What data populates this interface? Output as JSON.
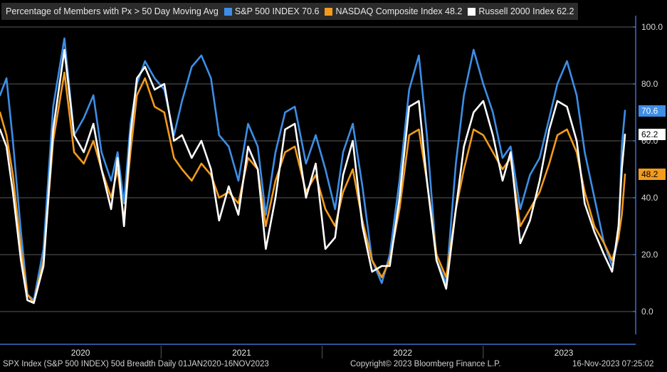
{
  "legend": {
    "title": "Percentage of Members with Px > 50 Day Moving Avg",
    "items": [
      {
        "label": "S&P 500 INDEX 70.6",
        "color": "#3d8ee6"
      },
      {
        "label": "NASDAQ Composite Index 48.2",
        "color": "#f29b1d"
      },
      {
        "label": "Russell 2000 Index 62.2",
        "color": "#ffffff"
      }
    ]
  },
  "badges": [
    {
      "label": "70.6",
      "value": 70.6,
      "bg": "#3d8ee6",
      "fg": "#ffffff"
    },
    {
      "label": "62.2",
      "value": 62.2,
      "bg": "#ffffff",
      "fg": "#000000"
    },
    {
      "label": "48.2",
      "value": 48.2,
      "bg": "#f29b1d",
      "fg": "#000000"
    }
  ],
  "footer": {
    "left": "SPX Index (S&P 500 INDEX) 50d Breadth  Daily 01JAN2020-16NOV2023",
    "center": "Copyright© 2023 Bloomberg Finance L.P.",
    "right": "16-Nov-2023 07:25:02"
  },
  "chart_data": {
    "type": "line",
    "title": "Percentage of Members with Px > 50 Day Moving Avg",
    "xlabel": "",
    "ylabel": "",
    "ylim": [
      -8,
      104
    ],
    "xlim": [
      2020.0,
      2023.88
    ],
    "yticks": [
      0,
      20,
      40,
      60,
      80,
      100
    ],
    "ytick_labels": [
      "0.0",
      "20.0",
      "40.0",
      "60.0",
      "80.0",
      "100.0"
    ],
    "xticks": [
      {
        "label": "2020",
        "at": 2020.5
      },
      {
        "label": "2021",
        "at": 2021.5
      },
      {
        "label": "2022",
        "at": 2022.5
      },
      {
        "label": "2023",
        "at": 2023.5
      }
    ],
    "year_separators": [
      2021.0,
      2022.0,
      2023.0
    ],
    "grid": true,
    "legend_position": "top-left",
    "series": [
      {
        "name": "S&P 500 INDEX",
        "color": "#3d8ee6",
        "last": 70.6,
        "points": [
          [
            2020.0,
            76
          ],
          [
            2020.04,
            82
          ],
          [
            2020.08,
            60
          ],
          [
            2020.13,
            28
          ],
          [
            2020.17,
            6
          ],
          [
            2020.21,
            4
          ],
          [
            2020.27,
            22
          ],
          [
            2020.33,
            72
          ],
          [
            2020.4,
            96
          ],
          [
            2020.46,
            62
          ],
          [
            2020.52,
            68
          ],
          [
            2020.58,
            76
          ],
          [
            2020.63,
            56
          ],
          [
            2020.69,
            46
          ],
          [
            2020.73,
            56
          ],
          [
            2020.77,
            38
          ],
          [
            2020.81,
            66
          ],
          [
            2020.85,
            80
          ],
          [
            2020.9,
            88
          ],
          [
            2020.96,
            82
          ],
          [
            2021.02,
            78
          ],
          [
            2021.08,
            62
          ],
          [
            2021.13,
            74
          ],
          [
            2021.19,
            86
          ],
          [
            2021.25,
            90
          ],
          [
            2021.31,
            82
          ],
          [
            2021.36,
            62
          ],
          [
            2021.42,
            58
          ],
          [
            2021.48,
            46
          ],
          [
            2021.54,
            66
          ],
          [
            2021.6,
            58
          ],
          [
            2021.65,
            34
          ],
          [
            2021.71,
            56
          ],
          [
            2021.77,
            70
          ],
          [
            2021.83,
            72
          ],
          [
            2021.9,
            52
          ],
          [
            2021.96,
            62
          ],
          [
            2022.02,
            50
          ],
          [
            2022.08,
            36
          ],
          [
            2022.13,
            56
          ],
          [
            2022.19,
            66
          ],
          [
            2022.25,
            44
          ],
          [
            2022.31,
            18
          ],
          [
            2022.37,
            10
          ],
          [
            2022.42,
            20
          ],
          [
            2022.48,
            46
          ],
          [
            2022.54,
            78
          ],
          [
            2022.6,
            90
          ],
          [
            2022.65,
            62
          ],
          [
            2022.71,
            18
          ],
          [
            2022.77,
            10
          ],
          [
            2022.83,
            52
          ],
          [
            2022.88,
            76
          ],
          [
            2022.94,
            92
          ],
          [
            2023.0,
            80
          ],
          [
            2023.06,
            70
          ],
          [
            2023.12,
            54
          ],
          [
            2023.17,
            58
          ],
          [
            2023.23,
            36
          ],
          [
            2023.29,
            48
          ],
          [
            2023.35,
            54
          ],
          [
            2023.41,
            68
          ],
          [
            2023.46,
            80
          ],
          [
            2023.52,
            88
          ],
          [
            2023.58,
            76
          ],
          [
            2023.63,
            56
          ],
          [
            2023.69,
            40
          ],
          [
            2023.75,
            24
          ],
          [
            2023.8,
            16
          ],
          [
            2023.84,
            26
          ],
          [
            2023.86,
            58
          ],
          [
            2023.88,
            70.6
          ]
        ]
      },
      {
        "name": "NASDAQ Composite Index",
        "color": "#f29b1d",
        "last": 48.2,
        "points": [
          [
            2020.0,
            70
          ],
          [
            2020.04,
            62
          ],
          [
            2020.08,
            48
          ],
          [
            2020.13,
            22
          ],
          [
            2020.17,
            6
          ],
          [
            2020.21,
            3
          ],
          [
            2020.27,
            18
          ],
          [
            2020.33,
            60
          ],
          [
            2020.4,
            84
          ],
          [
            2020.46,
            56
          ],
          [
            2020.52,
            52
          ],
          [
            2020.58,
            60
          ],
          [
            2020.63,
            50
          ],
          [
            2020.69,
            40
          ],
          [
            2020.73,
            50
          ],
          [
            2020.77,
            32
          ],
          [
            2020.81,
            56
          ],
          [
            2020.85,
            76
          ],
          [
            2020.9,
            82
          ],
          [
            2020.96,
            72
          ],
          [
            2021.02,
            70
          ],
          [
            2021.08,
            54
          ],
          [
            2021.13,
            50
          ],
          [
            2021.19,
            46
          ],
          [
            2021.25,
            52
          ],
          [
            2021.31,
            48
          ],
          [
            2021.36,
            40
          ],
          [
            2021.42,
            42
          ],
          [
            2021.48,
            38
          ],
          [
            2021.54,
            54
          ],
          [
            2021.6,
            50
          ],
          [
            2021.65,
            30
          ],
          [
            2021.71,
            46
          ],
          [
            2021.77,
            56
          ],
          [
            2021.83,
            58
          ],
          [
            2021.9,
            42
          ],
          [
            2021.96,
            48
          ],
          [
            2022.02,
            36
          ],
          [
            2022.08,
            30
          ],
          [
            2022.13,
            42
          ],
          [
            2022.19,
            50
          ],
          [
            2022.25,
            32
          ],
          [
            2022.31,
            18
          ],
          [
            2022.37,
            12
          ],
          [
            2022.42,
            18
          ],
          [
            2022.48,
            36
          ],
          [
            2022.54,
            62
          ],
          [
            2022.6,
            64
          ],
          [
            2022.65,
            46
          ],
          [
            2022.71,
            20
          ],
          [
            2022.77,
            12
          ],
          [
            2022.83,
            36
          ],
          [
            2022.88,
            50
          ],
          [
            2022.94,
            64
          ],
          [
            2023.0,
            62
          ],
          [
            2023.06,
            56
          ],
          [
            2023.12,
            50
          ],
          [
            2023.17,
            54
          ],
          [
            2023.23,
            30
          ],
          [
            2023.29,
            36
          ],
          [
            2023.35,
            42
          ],
          [
            2023.41,
            52
          ],
          [
            2023.46,
            62
          ],
          [
            2023.52,
            64
          ],
          [
            2023.58,
            56
          ],
          [
            2023.63,
            42
          ],
          [
            2023.69,
            30
          ],
          [
            2023.75,
            24
          ],
          [
            2023.8,
            18
          ],
          [
            2023.84,
            26
          ],
          [
            2023.86,
            34
          ],
          [
            2023.88,
            48.2
          ]
        ]
      },
      {
        "name": "Russell 2000 Index",
        "color": "#ffffff",
        "last": 62.2,
        "points": [
          [
            2020.0,
            64
          ],
          [
            2020.04,
            58
          ],
          [
            2020.08,
            42
          ],
          [
            2020.13,
            18
          ],
          [
            2020.17,
            4
          ],
          [
            2020.21,
            3
          ],
          [
            2020.27,
            16
          ],
          [
            2020.33,
            64
          ],
          [
            2020.4,
            92
          ],
          [
            2020.46,
            62
          ],
          [
            2020.52,
            56
          ],
          [
            2020.58,
            66
          ],
          [
            2020.63,
            50
          ],
          [
            2020.69,
            36
          ],
          [
            2020.73,
            54
          ],
          [
            2020.77,
            30
          ],
          [
            2020.81,
            62
          ],
          [
            2020.85,
            82
          ],
          [
            2020.9,
            86
          ],
          [
            2020.96,
            78
          ],
          [
            2021.02,
            80
          ],
          [
            2021.08,
            60
          ],
          [
            2021.13,
            62
          ],
          [
            2021.19,
            54
          ],
          [
            2021.25,
            60
          ],
          [
            2021.31,
            50
          ],
          [
            2021.36,
            32
          ],
          [
            2021.42,
            44
          ],
          [
            2021.48,
            34
          ],
          [
            2021.54,
            58
          ],
          [
            2021.6,
            50
          ],
          [
            2021.65,
            22
          ],
          [
            2021.71,
            40
          ],
          [
            2021.77,
            64
          ],
          [
            2021.83,
            66
          ],
          [
            2021.9,
            40
          ],
          [
            2021.96,
            52
          ],
          [
            2022.02,
            22
          ],
          [
            2022.08,
            26
          ],
          [
            2022.13,
            48
          ],
          [
            2022.19,
            60
          ],
          [
            2022.25,
            30
          ],
          [
            2022.31,
            14
          ],
          [
            2022.37,
            16
          ],
          [
            2022.42,
            16
          ],
          [
            2022.48,
            40
          ],
          [
            2022.54,
            72
          ],
          [
            2022.6,
            74
          ],
          [
            2022.65,
            46
          ],
          [
            2022.71,
            18
          ],
          [
            2022.77,
            8
          ],
          [
            2022.83,
            36
          ],
          [
            2022.88,
            58
          ],
          [
            2022.94,
            70
          ],
          [
            2023.0,
            74
          ],
          [
            2023.06,
            62
          ],
          [
            2023.12,
            46
          ],
          [
            2023.17,
            56
          ],
          [
            2023.23,
            24
          ],
          [
            2023.29,
            32
          ],
          [
            2023.35,
            46
          ],
          [
            2023.41,
            64
          ],
          [
            2023.46,
            74
          ],
          [
            2023.52,
            72
          ],
          [
            2023.58,
            60
          ],
          [
            2023.63,
            38
          ],
          [
            2023.69,
            28
          ],
          [
            2023.75,
            20
          ],
          [
            2023.8,
            14
          ],
          [
            2023.84,
            30
          ],
          [
            2023.86,
            50
          ],
          [
            2023.88,
            62.2
          ]
        ]
      }
    ]
  }
}
